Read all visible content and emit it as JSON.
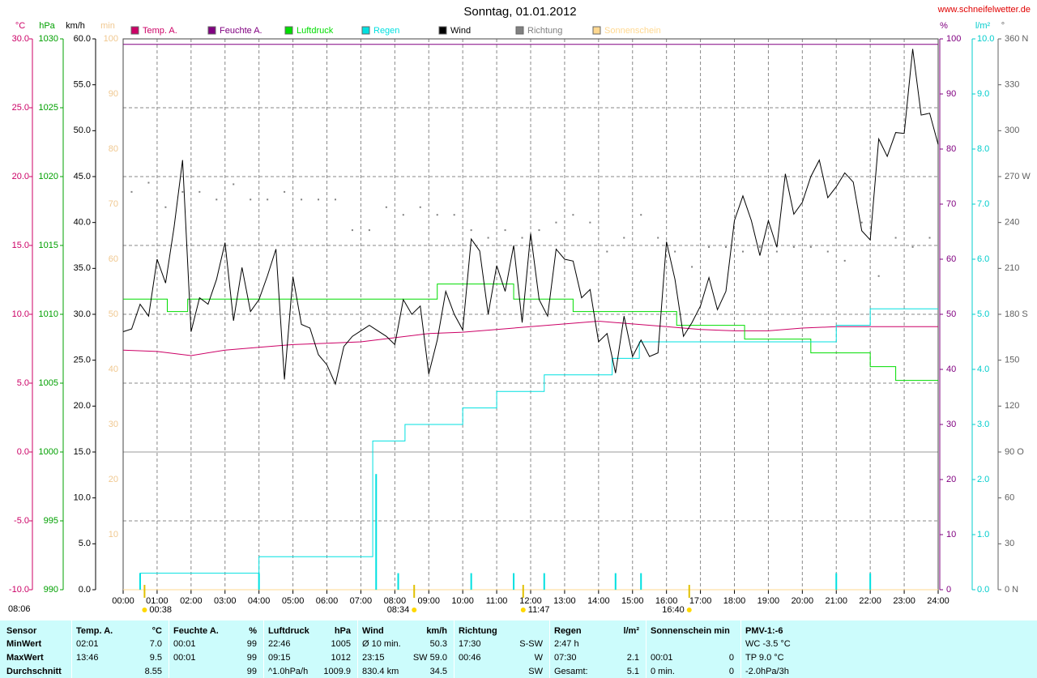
{
  "chart_data": {
    "type": "line",
    "title": "Sonntag, 01.01.2012",
    "site": "www.schneifelwetter.de",
    "corner_label": "08:06",
    "xlim": [
      0,
      24
    ],
    "xticks": [
      {
        "value": 0,
        "label": "00:00"
      },
      {
        "value": 1,
        "label": "01:00"
      },
      {
        "value": 2,
        "label": "02:00"
      },
      {
        "value": 3,
        "label": "03:00"
      },
      {
        "value": 4,
        "label": "04:00"
      },
      {
        "value": 5,
        "label": "05:00"
      },
      {
        "value": 6,
        "label": "06:00"
      },
      {
        "value": 7,
        "label": "07:00"
      },
      {
        "value": 8,
        "label": "08:00"
      },
      {
        "value": 9,
        "label": "09:00"
      },
      {
        "value": 10,
        "label": "10:00"
      },
      {
        "value": 11,
        "label": "11:00"
      },
      {
        "value": 12,
        "label": "12:00"
      },
      {
        "value": 13,
        "label": "13:00"
      },
      {
        "value": 14,
        "label": "14:00"
      },
      {
        "value": 15,
        "label": "15:00"
      },
      {
        "value": 16,
        "label": "16:00"
      },
      {
        "value": 17,
        "label": "17:00"
      },
      {
        "value": 18,
        "label": "18:00"
      },
      {
        "value": 19,
        "label": "19:00"
      },
      {
        "value": 20,
        "label": "20:00"
      },
      {
        "value": 21,
        "label": "21:00"
      },
      {
        "value": 22,
        "label": "22:00"
      },
      {
        "value": 23,
        "label": "23:00"
      },
      {
        "value": 24,
        "label": "24:00"
      }
    ],
    "grid": true,
    "grid_axis": "temp",
    "axes": [
      {
        "id": "temp",
        "label": "°C",
        "side": "left",
        "color": "#cc0066",
        "lim": [
          -10,
          30
        ],
        "ticks": [
          {
            "value": -10,
            "label": "-10.0"
          },
          {
            "value": -5,
            "label": "-5.0"
          },
          {
            "value": 0,
            "label": "0.0"
          },
          {
            "value": 5,
            "label": "5.0"
          },
          {
            "value": 10,
            "label": "10.0"
          },
          {
            "value": 15,
            "label": "15.0"
          },
          {
            "value": 20,
            "label": "20.0"
          },
          {
            "value": 25,
            "label": "25.0"
          },
          {
            "value": 30,
            "label": "30.0"
          }
        ]
      },
      {
        "id": "hpa",
        "label": "hPa",
        "side": "left",
        "color": "#00a000",
        "lim": [
          990,
          1030
        ],
        "ticks": [
          990,
          995,
          1000,
          1005,
          1010,
          1015,
          1020,
          1025,
          1030
        ]
      },
      {
        "id": "kmh",
        "label": "km/h",
        "side": "left",
        "color": "#000000",
        "lim": [
          0,
          60
        ],
        "ticks": [
          {
            "value": 0,
            "label": "0.0"
          },
          {
            "value": 5,
            "label": "5.0"
          },
          {
            "value": 10,
            "label": "10.0"
          },
          {
            "value": 15,
            "label": "15.0"
          },
          {
            "value": 20,
            "label": "20.0"
          },
          {
            "value": 25,
            "label": "25.0"
          },
          {
            "value": 30,
            "label": "30.0"
          },
          {
            "value": 35,
            "label": "35.0"
          },
          {
            "value": 40,
            "label": "40.0"
          },
          {
            "value": 45,
            "label": "45.0"
          },
          {
            "value": 50,
            "label": "50.0"
          },
          {
            "value": 55,
            "label": "55.0"
          },
          {
            "value": 60,
            "label": "60.0"
          }
        ]
      },
      {
        "id": "min",
        "label": "min",
        "side": "left",
        "color": "#f0c890",
        "lim": [
          0,
          100
        ],
        "ticks": [
          10,
          20,
          30,
          40,
          50,
          60,
          70,
          80,
          90,
          100
        ]
      },
      {
        "id": "pct",
        "label": "%",
        "side": "right",
        "color": "#800080",
        "lim": [
          0,
          100
        ],
        "ticks": [
          0,
          10,
          20,
          30,
          40,
          50,
          60,
          70,
          80,
          90,
          100
        ]
      },
      {
        "id": "rain",
        "label": "l/m²",
        "side": "right",
        "color": "#00cccc",
        "lim": [
          0,
          10
        ],
        "ticks": [
          {
            "value": 0,
            "label": "0.0"
          },
          {
            "value": 1,
            "label": "1.0"
          },
          {
            "value": 2,
            "label": "2.0"
          },
          {
            "value": 3,
            "label": "3.0"
          },
          {
            "value": 4,
            "label": "4.0"
          },
          {
            "value": 5,
            "label": "5.0"
          },
          {
            "value": 6,
            "label": "6.0"
          },
          {
            "value": 7,
            "label": "7.0"
          },
          {
            "value": 8,
            "label": "8.0"
          },
          {
            "value": 9,
            "label": "9.0"
          },
          {
            "value": 10,
            "label": "10.0"
          }
        ]
      },
      {
        "id": "deg",
        "label": "°",
        "side": "right",
        "color": "#606060",
        "lim": [
          0,
          360
        ],
        "ticks": [
          {
            "value": 0,
            "label": "0 N"
          },
          30,
          60,
          {
            "value": 90,
            "label": "90 O"
          },
          120,
          150,
          {
            "value": 180,
            "label": "180 S"
          },
          210,
          240,
          {
            "value": 270,
            "label": "270 W"
          },
          300,
          330,
          {
            "value": 360,
            "label": "360 N"
          }
        ]
      }
    ],
    "series": [
      {
        "name": "Temp. A.",
        "color": "#cc0066",
        "axis": "temp",
        "style": "line",
        "x": [
          0,
          1,
          2,
          3,
          4,
          5,
          6,
          7,
          8,
          9,
          10,
          11,
          12,
          13,
          14,
          15,
          16,
          17,
          18,
          19,
          20,
          21,
          22,
          23,
          24
        ],
        "values": [
          7.4,
          7.3,
          7.0,
          7.4,
          7.6,
          7.8,
          7.9,
          8.0,
          8.3,
          8.6,
          8.7,
          8.9,
          9.1,
          9.3,
          9.5,
          9.3,
          9.1,
          8.9,
          8.8,
          8.8,
          9.0,
          9.1,
          9.1,
          9.1,
          9.1
        ]
      },
      {
        "name": "Feuchte A.",
        "color": "#800080",
        "axis": "pct",
        "style": "line",
        "x": [
          0,
          24
        ],
        "values": [
          99,
          99
        ]
      },
      {
        "name": "Luftdruck",
        "color": "#00dd00",
        "axis": "hpa",
        "style": "step",
        "x": [
          0,
          1.3,
          1.9,
          9.25,
          11.5,
          13.25,
          16.3,
          18.3,
          20.25,
          22.0,
          22.75,
          24
        ],
        "values": [
          1011.1,
          1010.2,
          1011.1,
          1012.2,
          1011.1,
          1010.2,
          1009.2,
          1008.2,
          1007.2,
          1006.2,
          1005.2,
          1005.2
        ]
      },
      {
        "name": "Regen",
        "color": "#00e0e0",
        "axis": "rain",
        "style": "step",
        "x": [
          0,
          0.5,
          4.0,
          7.35,
          8.3,
          10.0,
          11.0,
          12.4,
          14.4,
          15.2,
          21.0,
          22.0,
          24
        ],
        "values": [
          0,
          0.3,
          0.6,
          2.7,
          3.0,
          3.3,
          3.6,
          3.9,
          4.2,
          4.5,
          4.8,
          5.1,
          5.1
        ]
      },
      {
        "name": "Wind",
        "color": "#000000",
        "axis": "kmh",
        "style": "line",
        "x": [
          0,
          0.25,
          0.5,
          0.75,
          1,
          1.25,
          1.5,
          1.75,
          2,
          2.25,
          2.5,
          2.75,
          3,
          3.25,
          3.5,
          3.75,
          4,
          4.25,
          4.5,
          4.75,
          5,
          5.25,
          5.5,
          5.75,
          6,
          6.25,
          6.5,
          6.75,
          7,
          7.25,
          7.5,
          7.75,
          8,
          8.25,
          8.5,
          8.75,
          9,
          9.25,
          9.5,
          9.75,
          10,
          10.25,
          10.5,
          10.75,
          11,
          11.25,
          11.5,
          11.75,
          12,
          12.25,
          12.5,
          12.75,
          13,
          13.25,
          13.5,
          13.75,
          14,
          14.25,
          14.5,
          14.75,
          15,
          15.25,
          15.5,
          15.75,
          16,
          16.25,
          16.5,
          16.75,
          17,
          17.25,
          17.5,
          17.75,
          18,
          18.25,
          18.5,
          18.75,
          19,
          19.25,
          19.5,
          19.75,
          20,
          20.25,
          20.5,
          20.75,
          21,
          21.25,
          21.5,
          21.75,
          22,
          22.25,
          22.5,
          22.75,
          23,
          23.25,
          23.5,
          23.75,
          24
        ],
        "values": [
          28.1,
          28.4,
          31.1,
          29.8,
          36.0,
          33.4,
          39.5,
          46.8,
          28.1,
          31.8,
          31.1,
          33.8,
          37.8,
          29.3,
          35.1,
          30.3,
          31.6,
          34.2,
          37.1,
          22.9,
          34.1,
          28.9,
          28.5,
          25.6,
          24.5,
          22.4,
          26.5,
          27.6,
          28.2,
          28.8,
          28.2,
          27.6,
          26.7,
          31.6,
          30.0,
          30.9,
          23.5,
          27.2,
          32.5,
          30.0,
          28.3,
          38.2,
          36.9,
          30.0,
          35.3,
          32.5,
          37.5,
          29.1,
          38.8,
          31.6,
          29.8,
          37.1,
          36.0,
          35.8,
          31.8,
          32.7,
          27.0,
          27.9,
          23.6,
          29.8,
          25.4,
          27.2,
          25.4,
          25.8,
          37.9,
          33.8,
          27.6,
          29.1,
          30.9,
          34.0,
          30.5,
          32.5,
          40.2,
          42.9,
          40.2,
          36.4,
          40.2,
          37.3,
          45.3,
          40.9,
          42.2,
          45.0,
          46.8,
          42.7,
          43.9,
          45.4,
          44.4,
          39.1,
          38.1,
          49.1,
          47.2,
          49.8,
          49.7,
          58.9,
          51.7,
          51.9,
          48.5
        ]
      },
      {
        "name": "Richtung",
        "color": "#808080",
        "axis": "deg",
        "style": "dots",
        "x": [
          0.25,
          0.75,
          1.25,
          1.75,
          2.25,
          2.75,
          3.25,
          3.75,
          4.25,
          4.75,
          5.25,
          5.75,
          6.25,
          6.75,
          7.25,
          7.75,
          8.25,
          8.75,
          9.25,
          9.75,
          10.25,
          10.75,
          11.25,
          11.75,
          12.25,
          12.75,
          13.25,
          13.75,
          14.25,
          14.75,
          15.25,
          15.75,
          16.25,
          16.75,
          17.25,
          17.75,
          18.25,
          18.75,
          19.25,
          19.75,
          20.25,
          20.75,
          21.25,
          21.75,
          22.25,
          22.75,
          23.25,
          23.75
        ],
        "values": [
          260,
          266,
          250,
          260,
          260,
          255,
          265,
          255,
          255,
          260,
          255,
          255,
          255,
          235,
          235,
          250,
          245,
          250,
          245,
          245,
          235,
          230,
          235,
          230,
          235,
          240,
          245,
          240,
          221,
          230,
          245,
          230,
          221,
          211,
          224,
          224,
          221,
          224,
          221,
          224,
          224,
          221,
          215,
          240,
          205,
          230,
          224,
          230
        ]
      },
      {
        "name": "Sonnenschein",
        "color": "#ffd890",
        "axis": "min",
        "style": "line",
        "x": [
          0,
          24
        ],
        "values": [
          0,
          0
        ]
      },
      {
        "color": "#00e0e0",
        "axis": "rain",
        "style": "bars",
        "x": [
          0.5,
          4.0,
          7.45,
          8.1,
          10.25,
          11.5,
          12.4,
          14.5,
          15.25,
          21.0,
          22.0
        ],
        "values": [
          0.3,
          0.3,
          2.1,
          0.3,
          0.3,
          0.3,
          0.3,
          0.3,
          0.3,
          0.3,
          0.3
        ]
      }
    ],
    "markers": [
      {
        "x": 0.63,
        "label": "00:38",
        "anchor": "start"
      },
      {
        "x": 8.57,
        "label": "08:34",
        "anchor": "end"
      },
      {
        "x": 11.78,
        "label": "11:47",
        "anchor": "start"
      },
      {
        "x": 16.67,
        "label": "16:40",
        "anchor": "end"
      }
    ]
  },
  "table": {
    "row_labels": [
      "Sensor",
      "MinWert",
      "MaxWert",
      "Durchschnitt"
    ],
    "groups": [
      {
        "title": "Temp. A.",
        "unit": "°C",
        "rows": [
          [
            "02:01",
            "7.0"
          ],
          [
            "13:46",
            "9.5"
          ],
          [
            null,
            "8.55"
          ]
        ]
      },
      {
        "title": "Feuchte A.",
        "unit": "%",
        "rows": [
          [
            "00:01",
            "99"
          ],
          [
            "00:01",
            "99"
          ],
          [
            null,
            "99"
          ]
        ]
      },
      {
        "title": "Luftdruck",
        "unit": "hPa",
        "rows": [
          [
            "22:46",
            "1005"
          ],
          [
            "09:15",
            "1012"
          ],
          [
            "^1.0hPa/h",
            "1009.9"
          ]
        ]
      },
      {
        "title": "Wind",
        "unit": "km/h",
        "rows": [
          [
            "Ø 10 min.",
            "50.3"
          ],
          [
            "23:15",
            "SW 59.0"
          ],
          [
            "830.4 km",
            "34.5"
          ]
        ]
      },
      {
        "title": "Richtung",
        "rows": [
          [
            "17:30",
            "S-SW"
          ],
          [
            "00:46",
            "W"
          ],
          [
            null,
            "SW"
          ]
        ]
      },
      {
        "title": "Regen",
        "unit": "l/m²",
        "rows": [
          [
            "2:47 h",
            null
          ],
          [
            "07:30",
            "2.1"
          ],
          [
            "Gesamt:",
            "5.1"
          ]
        ]
      },
      {
        "title": "Sonnenschein min",
        "rows": [
          [
            null,
            null
          ],
          [
            "00:01",
            "0"
          ],
          [
            "0 min.",
            "0"
          ]
        ]
      },
      {
        "title": "PMV-1:-6",
        "rows": [
          [
            "WC -3.5 °C",
            null
          ],
          [
            "TP 9.0 °C",
            null
          ],
          [
            "-2.0hPa/3h",
            null
          ]
        ]
      }
    ]
  }
}
